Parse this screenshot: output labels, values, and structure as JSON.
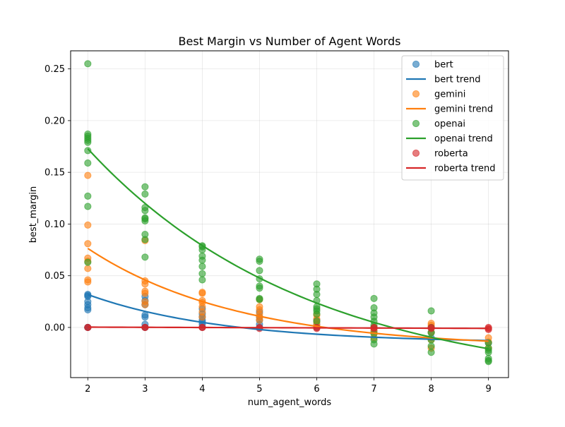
{
  "chart_data": {
    "type": "scatter",
    "title": "Best Margin vs Number of Agent Words",
    "xlabel": "num_agent_words",
    "ylabel": "best_margin",
    "xlim": [
      1.7,
      9.35
    ],
    "ylim": [
      -0.0485,
      0.2675
    ],
    "xticks": [
      2,
      3,
      4,
      5,
      6,
      7,
      8,
      9
    ],
    "yticks": [
      0.0,
      0.05,
      0.1,
      0.15,
      0.2,
      0.25
    ],
    "ytick_labels": [
      "0.00",
      "0.05",
      "0.10",
      "0.15",
      "0.20",
      "0.25"
    ],
    "grid": true,
    "legend_position": "upper right",
    "series": [
      {
        "name": "bert",
        "color": "#1f77b4",
        "points": [
          [
            2,
            0.032
          ],
          [
            2,
            0.031
          ],
          [
            2,
            0.03
          ],
          [
            2,
            0.025
          ],
          [
            2,
            0.022
          ],
          [
            2,
            0.019
          ],
          [
            2,
            0.017
          ],
          [
            2,
            0.0
          ],
          [
            2,
            0.0
          ],
          [
            2,
            0.0
          ],
          [
            3,
            0.03
          ],
          [
            3,
            0.026
          ],
          [
            3,
            0.022
          ],
          [
            3,
            0.012
          ],
          [
            3,
            0.01
          ],
          [
            3,
            0.003
          ],
          [
            3,
            0.0
          ],
          [
            3,
            0.0
          ],
          [
            4,
            0.018
          ],
          [
            4,
            0.013
          ],
          [
            4,
            0.01
          ],
          [
            4,
            0.007
          ],
          [
            4,
            0.005
          ],
          [
            4,
            0.003
          ],
          [
            4,
            0.0
          ],
          [
            5,
            0.015
          ],
          [
            5,
            0.01
          ],
          [
            5,
            0.007
          ],
          [
            5,
            0.003
          ],
          [
            5,
            0.0
          ],
          [
            6,
            0.007
          ],
          [
            6,
            0.003
          ],
          [
            6,
            0.0
          ],
          [
            7,
            0.0
          ],
          [
            7,
            -0.004
          ],
          [
            8,
            -0.005
          ],
          [
            8,
            -0.01
          ],
          [
            9,
            -0.015
          ]
        ],
        "trend_name": "bert trend",
        "trend": {
          "a": 0.0468,
          "b": 0.4267,
          "c": -0.015
        }
      },
      {
        "name": "gemini",
        "color": "#ff7f0e",
        "points": [
          [
            2,
            0.147
          ],
          [
            2,
            0.099
          ],
          [
            2,
            0.081
          ],
          [
            2,
            0.067
          ],
          [
            2,
            0.064
          ],
          [
            2,
            0.057
          ],
          [
            2,
            0.046
          ],
          [
            2,
            0.044
          ],
          [
            3,
            0.084
          ],
          [
            3,
            0.045
          ],
          [
            3,
            0.042
          ],
          [
            3,
            0.035
          ],
          [
            3,
            0.033
          ],
          [
            3,
            0.025
          ],
          [
            3,
            0.022
          ],
          [
            4,
            0.034
          ],
          [
            4,
            0.033
          ],
          [
            4,
            0.026
          ],
          [
            4,
            0.024
          ],
          [
            4,
            0.02
          ],
          [
            4,
            0.015
          ],
          [
            4,
            0.01
          ],
          [
            5,
            0.027
          ],
          [
            5,
            0.02
          ],
          [
            5,
            0.017
          ],
          [
            5,
            0.013
          ],
          [
            5,
            0.01
          ],
          [
            5,
            0.007
          ],
          [
            6,
            0.012
          ],
          [
            6,
            0.008
          ],
          [
            6,
            0.005
          ],
          [
            6,
            0.002
          ],
          [
            7,
            0.0
          ],
          [
            7,
            -0.003
          ],
          [
            7,
            -0.006
          ],
          [
            7,
            -0.01
          ],
          [
            8,
            0.004
          ],
          [
            8,
            0.002
          ],
          [
            8,
            -0.005
          ],
          [
            8,
            -0.012
          ],
          [
            8,
            -0.02
          ],
          [
            9,
            -0.01
          ],
          [
            9,
            -0.014
          ],
          [
            9,
            -0.02
          ]
        ],
        "trend_name": "gemini trend",
        "trend": {
          "a": 0.0964,
          "b": 0.38,
          "c": -0.02
        }
      },
      {
        "name": "openai",
        "color": "#2ca02c",
        "points": [
          [
            2,
            0.255
          ],
          [
            2,
            0.187
          ],
          [
            2,
            0.185
          ],
          [
            2,
            0.183
          ],
          [
            2,
            0.181
          ],
          [
            2,
            0.179
          ],
          [
            2,
            0.171
          ],
          [
            2,
            0.159
          ],
          [
            2,
            0.127
          ],
          [
            2,
            0.117
          ],
          [
            2,
            0.063
          ],
          [
            3,
            0.136
          ],
          [
            3,
            0.129
          ],
          [
            3,
            0.116
          ],
          [
            3,
            0.113
          ],
          [
            3,
            0.106
          ],
          [
            3,
            0.105
          ],
          [
            3,
            0.103
          ],
          [
            3,
            0.09
          ],
          [
            3,
            0.085
          ],
          [
            3,
            0.068
          ],
          [
            4,
            0.079
          ],
          [
            4,
            0.078
          ],
          [
            4,
            0.075
          ],
          [
            4,
            0.069
          ],
          [
            4,
            0.065
          ],
          [
            4,
            0.059
          ],
          [
            4,
            0.052
          ],
          [
            4,
            0.046
          ],
          [
            5,
            0.066
          ],
          [
            5,
            0.064
          ],
          [
            5,
            0.055
          ],
          [
            5,
            0.047
          ],
          [
            5,
            0.04
          ],
          [
            5,
            0.038
          ],
          [
            5,
            0.028
          ],
          [
            5,
            0.027
          ],
          [
            6,
            0.042
          ],
          [
            6,
            0.037
          ],
          [
            6,
            0.032
          ],
          [
            6,
            0.026
          ],
          [
            6,
            0.02
          ],
          [
            6,
            0.018
          ],
          [
            6,
            0.016
          ],
          [
            6,
            0.013
          ],
          [
            6,
            0.006
          ],
          [
            7,
            0.028
          ],
          [
            7,
            0.019
          ],
          [
            7,
            0.014
          ],
          [
            7,
            0.01
          ],
          [
            7,
            0.006
          ],
          [
            7,
            0.002
          ],
          [
            7,
            -0.006
          ],
          [
            7,
            -0.012
          ],
          [
            7,
            -0.016
          ],
          [
            8,
            0.016
          ],
          [
            8,
            0.0
          ],
          [
            8,
            -0.005
          ],
          [
            8,
            -0.012
          ],
          [
            8,
            -0.018
          ],
          [
            8,
            -0.024
          ],
          [
            9,
            -0.015
          ],
          [
            9,
            -0.02
          ],
          [
            9,
            -0.022
          ],
          [
            9,
            -0.024
          ],
          [
            9,
            -0.03
          ],
          [
            9,
            -0.032
          ],
          [
            9,
            -0.033
          ]
        ],
        "trend_name": "openai trend",
        "trend": {
          "a": 0.2308,
          "b": 0.26,
          "c": -0.058
        }
      },
      {
        "name": "roberta",
        "color": "#d62728",
        "points": [
          [
            2,
            0.0
          ],
          [
            2,
            0.0
          ],
          [
            3,
            0.0
          ],
          [
            3,
            0.0
          ],
          [
            4,
            0.0
          ],
          [
            4,
            0.0
          ],
          [
            5,
            0.0
          ],
          [
            5,
            -0.001
          ],
          [
            6,
            0.0
          ],
          [
            6,
            -0.001
          ],
          [
            7,
            0.0
          ],
          [
            7,
            -0.001
          ],
          [
            8,
            0.0
          ],
          [
            8,
            -0.001
          ],
          [
            9,
            0.0
          ],
          [
            9,
            -0.001
          ],
          [
            9,
            -0.002
          ]
        ],
        "trend_name": "roberta trend",
        "trend": {
          "linear": [
            0.0003,
            -0.00017
          ]
        }
      }
    ]
  }
}
